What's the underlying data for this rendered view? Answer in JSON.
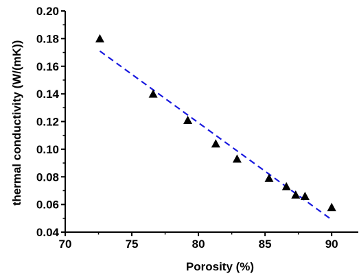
{
  "chart_data": {
    "type": "scatter",
    "title": "",
    "xlabel": "Porosity (%)",
    "ylabel": "thermal conductivity (W/(mK))",
    "xlim": [
      70,
      92
    ],
    "ylim": [
      0.04,
      0.2
    ],
    "x_ticks": [
      70,
      75,
      80,
      85,
      90
    ],
    "x_tick_labels": [
      "70",
      "75",
      "80",
      "85",
      "90"
    ],
    "y_ticks": [
      0.04,
      0.06,
      0.08,
      0.1,
      0.12,
      0.14,
      0.16,
      0.18,
      0.2
    ],
    "y_tick_labels": [
      "0.04",
      "0.06",
      "0.08",
      "0.10",
      "0.12",
      "0.14",
      "0.16",
      "0.18",
      "0.20"
    ],
    "grid": false,
    "legend": "none",
    "series": [
      {
        "type": "scatter",
        "marker": "triangle",
        "color": "#000000",
        "x": [
          72.6,
          76.6,
          79.2,
          81.3,
          82.9,
          85.3,
          86.6,
          87.3,
          88.0,
          90.0
        ],
        "y": [
          0.18,
          0.14,
          0.121,
          0.104,
          0.093,
          0.079,
          0.073,
          0.067,
          0.066,
          0.058
        ]
      },
      {
        "type": "line",
        "style": "dashed",
        "color": "#1a1adf",
        "x": [
          72.6,
          90.0
        ],
        "y": [
          0.171,
          0.049
        ]
      }
    ]
  }
}
